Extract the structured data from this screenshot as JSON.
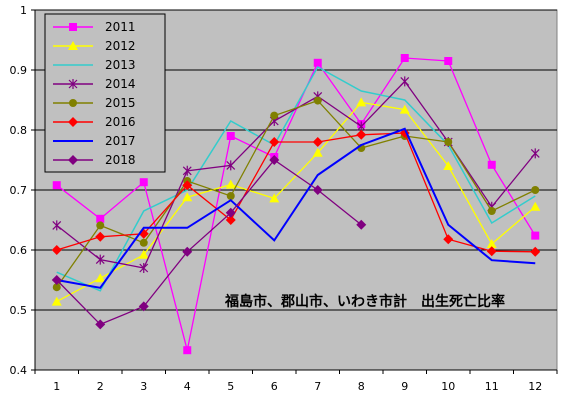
{
  "chart_data": {
    "type": "line",
    "title": "福島市、郡山市、いわき市計　出生死亡比率",
    "xlabel": "",
    "ylabel": "",
    "x": [
      1,
      2,
      3,
      4,
      5,
      6,
      7,
      8,
      9,
      10,
      11,
      12
    ],
    "x_tick_labels": [
      "1",
      "2",
      "3",
      "4",
      "5",
      "6",
      "7",
      "8",
      "9",
      "10",
      "11",
      "12"
    ],
    "ylim": [
      0.4,
      1.0
    ],
    "y_ticks": [
      0.4,
      0.5,
      0.6,
      0.7,
      0.8,
      0.9,
      1.0
    ],
    "y_tick_labels": [
      "0.4",
      "0.5",
      "0.6",
      "0.7",
      "0.8",
      "0.9",
      "1"
    ],
    "grid": true,
    "legend_position": "top-left",
    "plot_background": "#c0c0c0",
    "series": [
      {
        "name": "2011",
        "color": "#ff00ff",
        "marker": "square",
        "values": [
          0.708,
          0.652,
          0.713,
          0.433,
          0.79,
          0.755,
          0.912,
          0.81,
          0.92,
          0.915,
          0.742,
          0.624
        ]
      },
      {
        "name": "2012",
        "color": "#ffff00",
        "marker": "triangle",
        "values": [
          0.514,
          0.553,
          0.592,
          0.688,
          0.709,
          0.686,
          0.762,
          0.846,
          0.834,
          0.74,
          0.61,
          0.672
        ]
      },
      {
        "name": "2013",
        "color": "#33cccc",
        "marker": "none",
        "values": [
          0.563,
          0.532,
          0.665,
          0.7,
          0.815,
          0.775,
          0.905,
          0.865,
          0.85,
          0.775,
          0.645,
          0.69
        ]
      },
      {
        "name": "2014",
        "color": "#800080",
        "marker": "star",
        "values": [
          0.641,
          0.584,
          0.57,
          0.732,
          0.741,
          0.815,
          0.856,
          0.806,
          0.881,
          0.78,
          0.672,
          0.761
        ]
      },
      {
        "name": "2015",
        "color": "#808000",
        "marker": "circle",
        "values": [
          0.538,
          0.641,
          0.612,
          0.715,
          0.69,
          0.824,
          0.849,
          0.77,
          0.79,
          0.78,
          0.665,
          0.7
        ]
      },
      {
        "name": "2016",
        "color": "#ff0000",
        "marker": "diamond",
        "values": [
          0.6,
          0.622,
          0.627,
          0.708,
          0.65,
          0.78,
          0.78,
          0.792,
          0.795,
          0.618,
          0.598,
          0.597
        ]
      },
      {
        "name": "2017",
        "color": "#0000ff",
        "marker": "none",
        "values": [
          0.55,
          0.537,
          0.637,
          0.637,
          0.683,
          0.616,
          0.725,
          0.775,
          0.802,
          0.642,
          0.583,
          0.578
        ]
      },
      {
        "name": "2018",
        "color": "#800080",
        "marker": "diamond",
        "values": [
          0.55,
          0.476,
          0.506,
          0.597,
          0.662,
          0.75,
          0.7,
          0.642,
          null,
          null,
          null,
          null
        ]
      }
    ]
  }
}
